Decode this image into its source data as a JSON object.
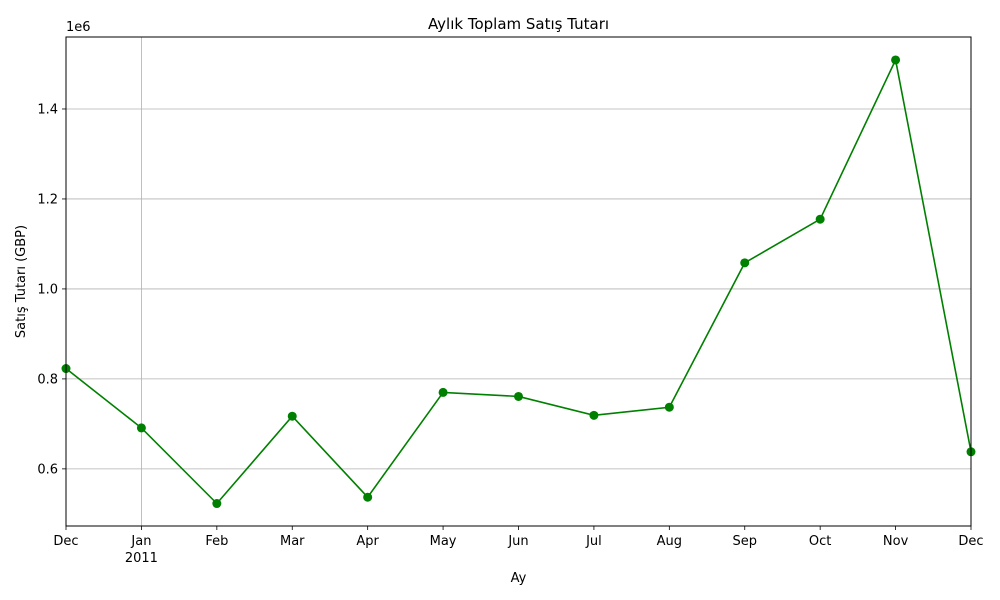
{
  "chart_data": {
    "type": "line",
    "title": "Aylık Toplam Satış Tutarı",
    "xlabel": "Ay",
    "ylabel": "Satış Tutarı (GBP)",
    "y_offset_label": "1e6",
    "ylim": [
      0.473,
      1.56
    ],
    "y_ticks": [
      0.6,
      0.8,
      1.0,
      1.2,
      1.4
    ],
    "y_tick_labels": [
      "0.6",
      "0.8",
      "1.0",
      "1.2",
      "1.4"
    ],
    "x": [
      "2010-12",
      "2011-01",
      "2011-02",
      "2011-03",
      "2011-04",
      "2011-05",
      "2011-06",
      "2011-07",
      "2011-08",
      "2011-09",
      "2011-10",
      "2011-11",
      "2011-12"
    ],
    "x_tick_labels": [
      "Dec",
      "Jan",
      "Feb",
      "Mar",
      "Apr",
      "May",
      "Jun",
      "Jul",
      "Aug",
      "Sep",
      "Oct",
      "Nov",
      "Dec"
    ],
    "x_year_label": {
      "index": 1,
      "text": "2011"
    },
    "series": [
      {
        "values": [
          0.823,
          0.691,
          0.523,
          0.717,
          0.537,
          0.77,
          0.761,
          0.719,
          0.737,
          1.058,
          1.155,
          1.509,
          0.638
        ],
        "color": "#008000",
        "marker": "circle"
      }
    ],
    "grid": true,
    "grid_x_at_index": [
      1
    ],
    "colors": {
      "line": "#008000",
      "grid": "#b0b0b0",
      "axes": "#000000"
    }
  }
}
